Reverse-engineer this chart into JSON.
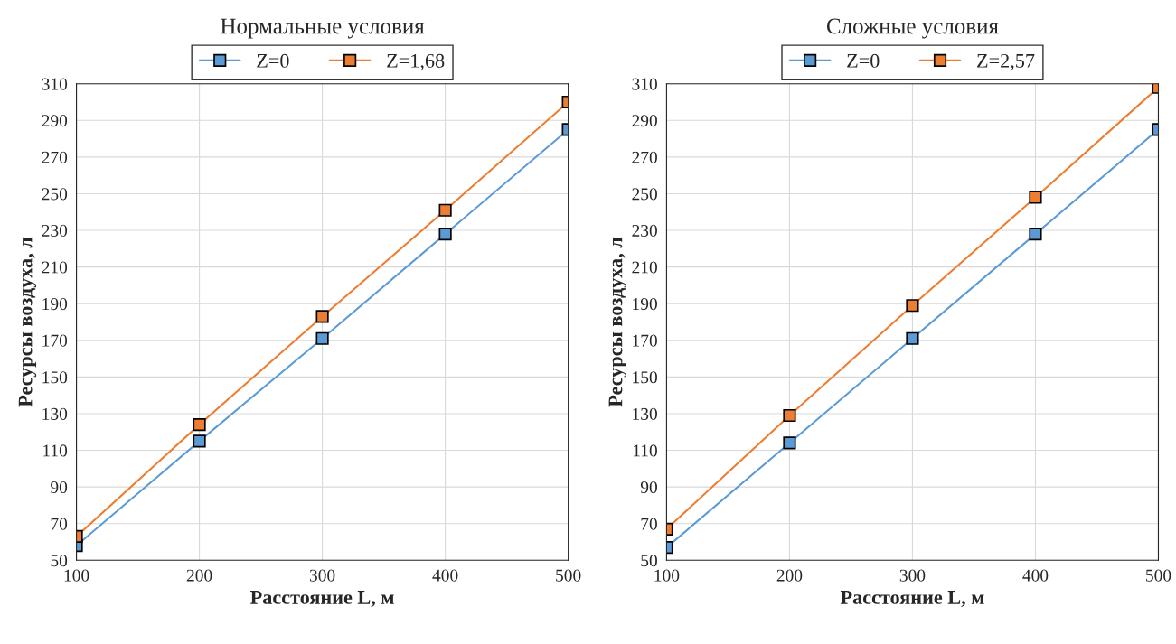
{
  "chart_data": [
    {
      "type": "line",
      "title": "Нормальные условия",
      "xlabel": "Расстояние L, м",
      "ylabel": "Ресурсы воздуха, л",
      "x": [
        100,
        200,
        300,
        400,
        500
      ],
      "series": [
        {
          "name": "Z=0",
          "color": "#5b9bd5",
          "values": [
            58,
            115,
            171,
            228,
            285
          ]
        },
        {
          "name": "Z=1,68",
          "color": "#ed7d31",
          "values": [
            63,
            124,
            183,
            241,
            300
          ]
        }
      ],
      "xlim": [
        100,
        500
      ],
      "xticks": [
        100,
        200,
        300,
        400,
        500
      ],
      "ylim": [
        50,
        310
      ],
      "yticks": [
        50,
        70,
        90,
        110,
        130,
        150,
        170,
        190,
        210,
        230,
        250,
        270,
        290,
        310
      ],
      "grid": true,
      "legend": "top",
      "marker": "square"
    },
    {
      "type": "line",
      "title": "Сложные условия",
      "xlabel": "Расстояние L, м",
      "ylabel": "Ресурсы воздуха, л",
      "x": [
        100,
        200,
        300,
        400,
        500
      ],
      "series": [
        {
          "name": "Z=0",
          "color": "#5b9bd5",
          "values": [
            57,
            114,
            171,
            228,
            285
          ]
        },
        {
          "name": "Z=2,57",
          "color": "#ed7d31",
          "values": [
            67,
            129,
            189,
            248,
            308
          ]
        }
      ],
      "xlim": [
        100,
        500
      ],
      "xticks": [
        100,
        200,
        300,
        400,
        500
      ],
      "ylim": [
        50,
        310
      ],
      "yticks": [
        50,
        70,
        90,
        110,
        130,
        150,
        170,
        190,
        210,
        230,
        250,
        270,
        290,
        310
      ],
      "grid": true,
      "legend": "top",
      "marker": "square"
    }
  ]
}
